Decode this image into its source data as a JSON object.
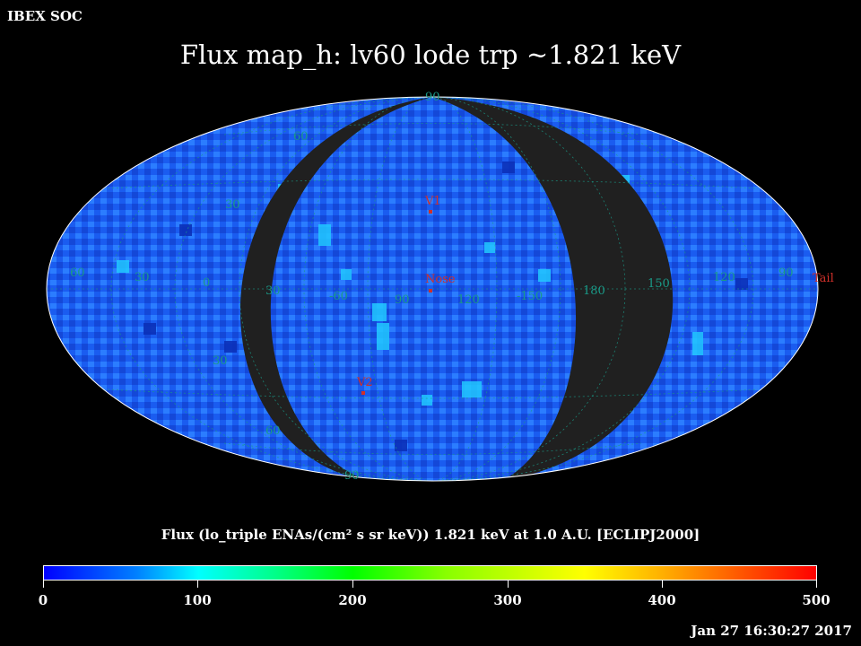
{
  "header": {
    "soc_label": "IBEX SOC",
    "title": "Flux   map_h: lv60 lode trp ~1.821 keV"
  },
  "map": {
    "projection": "mollweide",
    "data_color": "#1a66ff",
    "no_data_color": "#202020",
    "grid_color": "#1a9a88",
    "meridian_labels": [
      "60",
      "30",
      "0",
      "30",
      "-60",
      "90",
      "120",
      "-150",
      "180",
      "150",
      "120",
      "90"
    ],
    "parallel_labels": [
      "90",
      "60",
      "30",
      "30",
      "60",
      "90"
    ],
    "markers": [
      {
        "label": "V1"
      },
      {
        "label": "Nose"
      },
      {
        "label": "V2"
      },
      {
        "label": "Tail"
      }
    ]
  },
  "colorbar": {
    "label": "Flux (lo_triple ENAs/(cm² s sr keV))  1.821 keV at 1.0 A.U. [ECLIPJ2000]",
    "ticks": [
      "0",
      "100",
      "200",
      "300",
      "400",
      "500"
    ],
    "range": [
      0,
      500
    ]
  },
  "footer": {
    "timestamp": "Jan 27 16:30:27 2017"
  }
}
